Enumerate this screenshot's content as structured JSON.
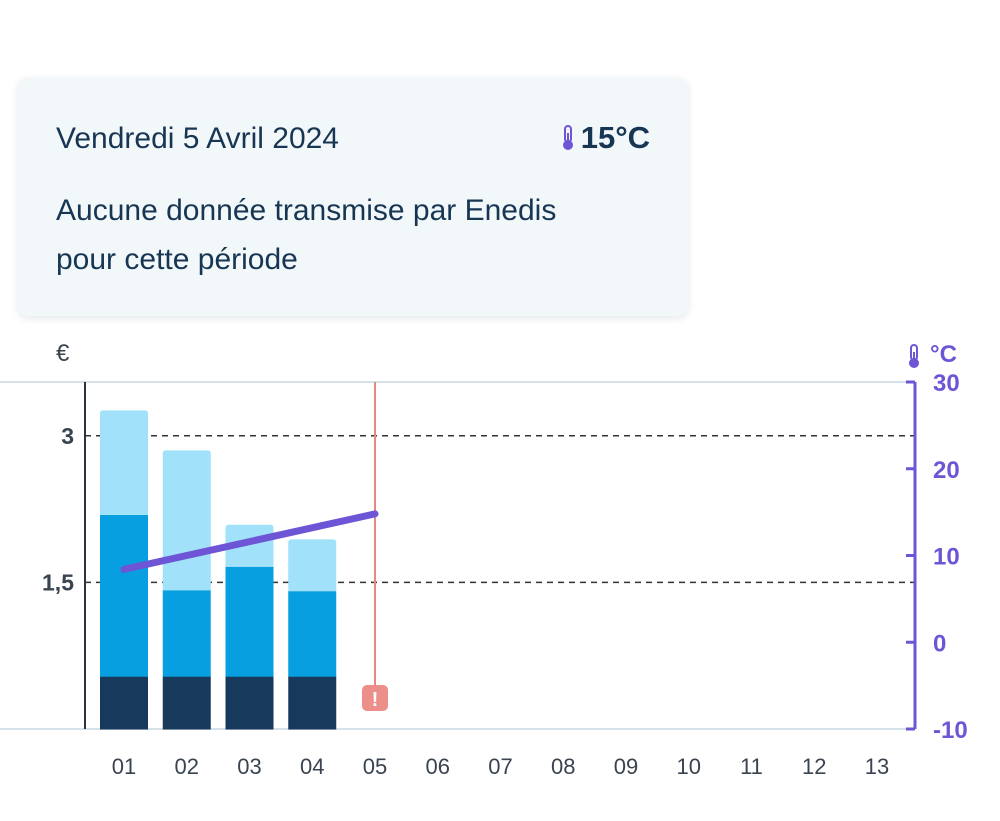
{
  "tooltip": {
    "date": "Vendredi 5 Avril 2024",
    "temperature": "15°C",
    "message_line1": "Aucune donnée transmise par Enedis",
    "message_line2": "pour cette période"
  },
  "chart_data": {
    "type": "bar",
    "left_axis": {
      "unit": "€",
      "ylim": [
        0,
        3.55
      ],
      "ticks": [
        1.5,
        3
      ],
      "tick_labels": [
        "1,5",
        "3"
      ]
    },
    "right_axis": {
      "unit": "°C",
      "ylim": [
        -10,
        30
      ],
      "ticks": [
        -10,
        0,
        10,
        20,
        30
      ],
      "tick_labels": [
        "-10",
        "0",
        "10",
        "20",
        "30"
      ]
    },
    "categories": [
      "01",
      "02",
      "03",
      "04",
      "05",
      "06",
      "07",
      "08",
      "09",
      "10",
      "11",
      "12",
      "13"
    ],
    "stacked_series": [
      {
        "color": "#173a5c",
        "values": [
          0.54,
          0.54,
          0.54,
          0.54,
          null,
          null,
          null,
          null,
          null,
          null,
          null,
          null,
          null
        ]
      },
      {
        "color": "#079fdf",
        "values": [
          1.65,
          0.88,
          1.12,
          0.87,
          null,
          null,
          null,
          null,
          null,
          null,
          null,
          null,
          null
        ]
      },
      {
        "color": "#a1e2fa",
        "values": [
          1.07,
          1.43,
          0.43,
          0.53,
          null,
          null,
          null,
          null,
          null,
          null,
          null,
          null,
          null
        ]
      }
    ],
    "temperature_series": {
      "color": "#6e55d6",
      "x": [
        "01",
        "05"
      ],
      "y": [
        8.4,
        14.8
      ]
    },
    "reference_lines": [
      1.5,
      3
    ],
    "selected_day": "05",
    "missing_data_marker": {
      "day": "05",
      "symbol": "!"
    },
    "colors": {
      "grid": "#333333",
      "axis_right": "#6e55d6",
      "selected_line": "#e98883",
      "warning": "#ec8f8a"
    }
  }
}
